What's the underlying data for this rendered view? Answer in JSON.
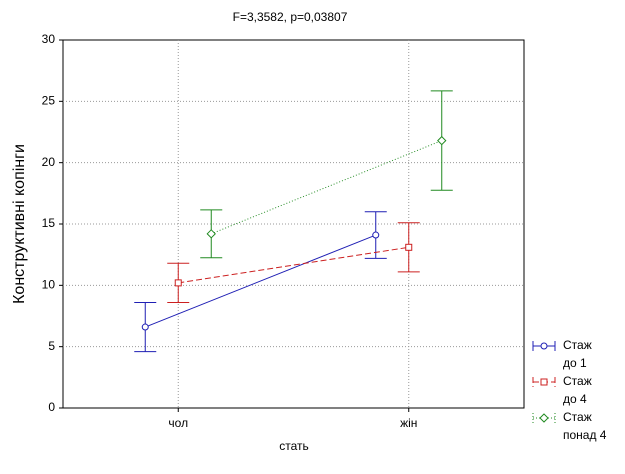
{
  "chart_data": {
    "type": "line",
    "title": "F=3,3582, p=0,03807",
    "xlabel": "стать",
    "ylabel": "Конструктивні копінги",
    "categories": [
      "чол",
      "жін"
    ],
    "series": [
      {
        "name": "Стаж до 1",
        "color": "#1f1fb4",
        "dash": "none",
        "marker": "circle",
        "values": [
          6.6,
          14.1
        ],
        "errors": [
          2.0,
          1.9
        ]
      },
      {
        "name": "Стаж до 4",
        "color": "#cc2020",
        "dash": "6 3",
        "marker": "square",
        "values": [
          10.2,
          13.1
        ],
        "errors": [
          1.6,
          2.0
        ]
      },
      {
        "name": "Стаж понад 4",
        "color": "#208a20",
        "dash": "1 2",
        "marker": "diamond",
        "values": [
          14.2,
          21.8
        ],
        "errors": [
          1.95,
          4.05
        ]
      }
    ],
    "ylim": [
      0,
      30
    ],
    "yticks": [
      0,
      5,
      10,
      15,
      20,
      25,
      30
    ],
    "grid": true
  }
}
